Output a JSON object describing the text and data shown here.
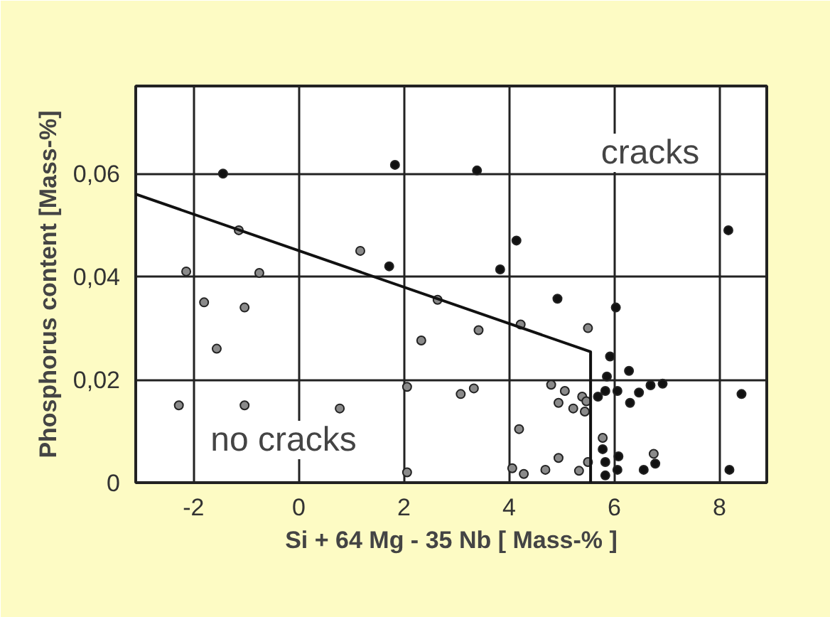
{
  "chart_data": {
    "type": "scatter",
    "xlabel": "Si + 64 Mg - 35 Nb [ Mass-% ]",
    "ylabel": "Phosphorus content [Mass-%]",
    "xlim": [
      -3.1,
      8.9
    ],
    "ylim": [
      0,
      0.077
    ],
    "xticks": [
      -2,
      0,
      2,
      4,
      6,
      8
    ],
    "yticks": [
      {
        "value": 0,
        "label": "0"
      },
      {
        "value": 0.02,
        "label": "0,02"
      },
      {
        "value": 0.04,
        "label": "0,04"
      },
      {
        "value": 0.06,
        "label": "0,06"
      }
    ],
    "grid": true,
    "annotations": [
      "cracks",
      "no cracks"
    ],
    "series": [
      {
        "marker": "circle",
        "color": "#111111",
        "x": [
          -1.44,
          1.83,
          3.39,
          4.14,
          1.72,
          3.83,
          4.92,
          6.03,
          5.92,
          5.86,
          5.83,
          6.06,
          5.69,
          6.28,
          6.3,
          6.47,
          5.78,
          5.83,
          5.83,
          6.08,
          6.06,
          6.69,
          6.92,
          8.42,
          8.19,
          6.78,
          6.56,
          8.17
        ],
        "values": [
          0.06,
          0.0617,
          0.0606,
          0.047,
          0.042,
          0.0414,
          0.0357,
          0.034,
          0.0245,
          0.0206,
          0.0178,
          0.0178,
          0.0167,
          0.0217,
          0.0155,
          0.0175,
          0.0065,
          0.004,
          0.0014,
          0.0051,
          0.0025,
          0.0189,
          0.0192,
          0.0172,
          0.0025,
          0.0037,
          0.0025,
          0.049
        ]
      },
      {
        "marker": "circle",
        "color": "#8a8a8a",
        "x": [
          -1.14,
          -2.14,
          -0.75,
          -1.8,
          -1.03,
          -1.56,
          -2.28,
          -1.03,
          0.78,
          1.17,
          2.64,
          2.33,
          3.42,
          4.22,
          5.5,
          2.06,
          3.08,
          3.33,
          4.19,
          2.06,
          4.06,
          4.28,
          4.69,
          4.94,
          5.33,
          5.5,
          4.8,
          5.06,
          4.94,
          5.22,
          5.39,
          5.44,
          5.47,
          5.78,
          6.75
        ],
        "values": [
          0.049,
          0.041,
          0.0407,
          0.035,
          0.034,
          0.026,
          0.015,
          0.015,
          0.0144,
          0.045,
          0.0355,
          0.0276,
          0.0296,
          0.0307,
          0.03,
          0.0186,
          0.0172,
          0.0183,
          0.0104,
          0.002,
          0.0028,
          0.0017,
          0.0025,
          0.0048,
          0.0023,
          0.004,
          0.019,
          0.0178,
          0.0155,
          0.0144,
          0.0167,
          0.0138,
          0.0158,
          0.0087,
          0.0056
        ]
      },
      {
        "type": "line",
        "color": "#111111",
        "x": [
          -3.1,
          5.55,
          5.55
        ],
        "values": [
          0.056,
          0.0254,
          0
        ]
      }
    ]
  }
}
